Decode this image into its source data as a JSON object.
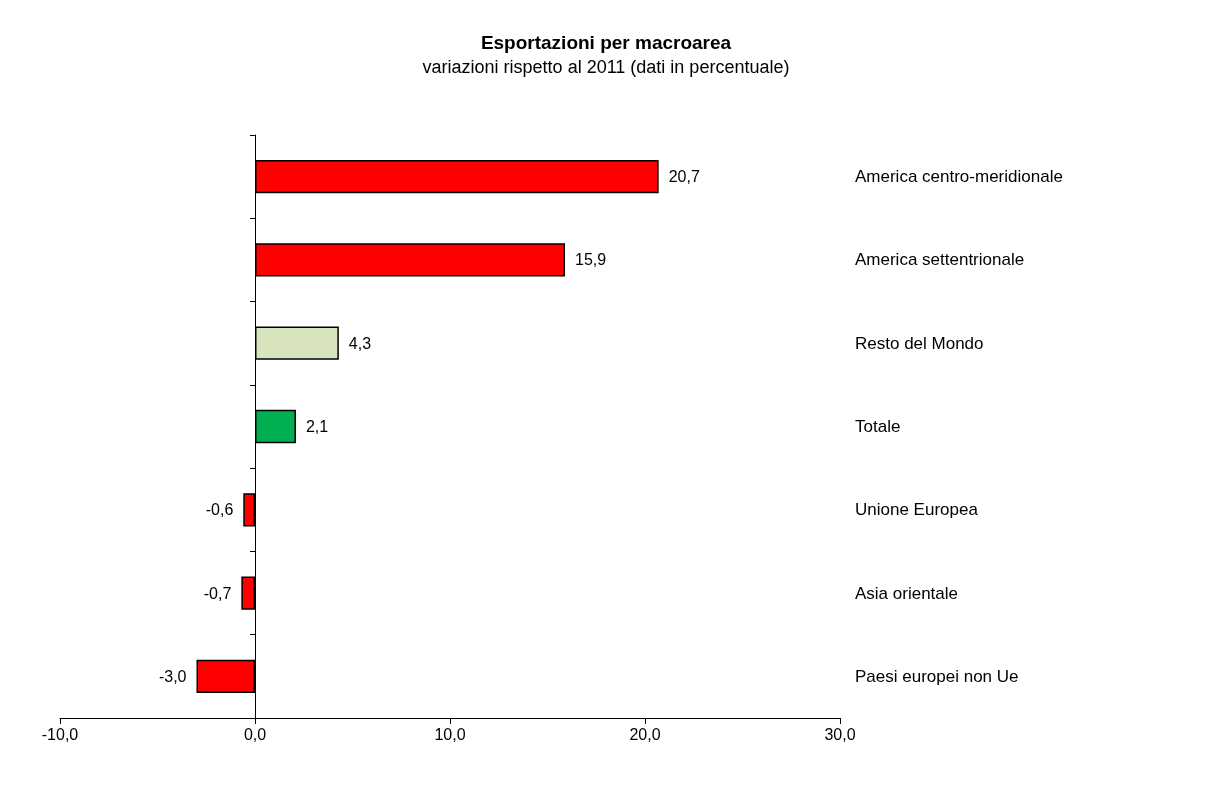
{
  "chart_data": {
    "type": "bar",
    "orientation": "horizontal",
    "title": "Esportazioni per macroarea",
    "subtitle": "variazioni rispetto al 2011 (dati in percentuale)",
    "categories": [
      "America centro-meridionale",
      "America settentrionale",
      "Resto del Mondo",
      "Totale",
      "Unione Europea",
      "Asia orientale",
      "Paesi europei non Ue"
    ],
    "values": [
      20.7,
      15.9,
      4.3,
      2.1,
      -0.6,
      -0.7,
      -3.0
    ],
    "value_labels": [
      "20,7",
      "15,9",
      "4,3",
      "2,1",
      "-0,6",
      "-0,7",
      "-3,0"
    ],
    "colors": [
      "#ff0000",
      "#ff0000",
      "#d8e4bc",
      "#00b050",
      "#ff0000",
      "#ff0000",
      "#ff0000"
    ],
    "xlim": [
      -10,
      30
    ],
    "xticks": [
      {
        "value": -10,
        "label": "-10,0"
      },
      {
        "value": 0,
        "label": "0,0"
      },
      {
        "value": 10,
        "label": "10,0"
      },
      {
        "value": 20,
        "label": "20,0"
      },
      {
        "value": 30,
        "label": "30,0"
      }
    ]
  }
}
